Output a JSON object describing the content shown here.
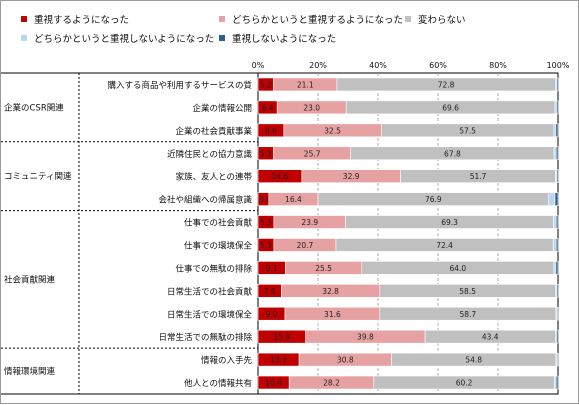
{
  "chart_data": {
    "type": "bar",
    "stacked": true,
    "orientation": "horizontal",
    "xlim": [
      0,
      100
    ],
    "xticks": [
      "0%",
      "20%",
      "40%",
      "60%",
      "80%",
      "100%"
    ],
    "legend": [
      {
        "name": "重視するようになった",
        "color": "#c00000"
      },
      {
        "name": "どちらかというと重視するようになった",
        "color": "#e6a2a2"
      },
      {
        "name": "変わらない",
        "color": "#c0c0c0"
      },
      {
        "name": "どちらかというと重視しないようになった",
        "color": "#b7d7f0"
      },
      {
        "name": "重視しないようになった",
        "color": "#2e5f8a"
      }
    ],
    "groups": [
      {
        "label": "企業のCSR関連",
        "rows": [
          0,
          2
        ]
      },
      {
        "label": "コミュニティ関連",
        "rows": [
          3,
          5
        ]
      },
      {
        "label": "社会貢献関連",
        "rows": [
          6,
          11
        ]
      },
      {
        "label": "情報環境関連",
        "rows": [
          12,
          13
        ]
      }
    ],
    "categories": [
      "購入する商品や利用するサービスの質",
      "企業の情報公開",
      "企業の社会貢献事業",
      "近隣住民との協力意識",
      "家族、友人との連帯",
      "会社や組織への帰属意識",
      "仕事での社会貢献",
      "仕事での環境保全",
      "仕事での無駄の排除",
      "日常生活での社会貢献",
      "日常生活での環境保全",
      "日常生活での無駄の排除",
      "情報の入手先",
      "他人との情報共有"
    ],
    "series": [
      {
        "name": "重視するようになった",
        "values": [
          5.2,
          6.4,
          8.6,
          5.2,
          14.6,
          3.6,
          5.3,
          5.3,
          9.1,
          7.8,
          9.0,
          15.9,
          13.7,
          10.4
        ]
      },
      {
        "name": "どちらかというと重視するようになった",
        "values": [
          21.1,
          23.0,
          32.5,
          25.7,
          32.9,
          16.4,
          23.9,
          20.7,
          25.5,
          32.8,
          31.6,
          39.8,
          30.8,
          28.2
        ]
      },
      {
        "name": "変わらない",
        "values": [
          72.8,
          69.6,
          57.5,
          67.8,
          51.7,
          76.9,
          69.3,
          72.4,
          64.0,
          58.5,
          58.7,
          43.4,
          54.8,
          60.2
        ]
      },
      {
        "name": "どちらかというと重視しないようになった",
        "values": [
          0.5,
          0.5,
          0.7,
          0.7,
          0.4,
          2.1,
          0.9,
          1.0,
          0.7,
          0.5,
          0.4,
          0.4,
          0.4,
          0.6
        ]
      },
      {
        "name": "重視しないようになった",
        "values": [
          0.4,
          0.5,
          0.7,
          0.6,
          0.4,
          1.0,
          0.6,
          0.6,
          0.7,
          0.4,
          0.3,
          0.5,
          0.3,
          0.6
        ]
      }
    ],
    "labels": [
      [
        "5.2",
        "21.1",
        "72.8"
      ],
      [
        "6.4",
        "23.0",
        "69.6"
      ],
      [
        "8.6",
        "32.5",
        "57.5"
      ],
      [
        "5.2",
        "25.7",
        "67.8"
      ],
      [
        "14.6",
        "32.9",
        "51.7"
      ],
      [
        "3.6",
        "16.4",
        "76.9"
      ],
      [
        "5.3",
        "23.9",
        "69.3"
      ],
      [
        "5.3",
        "20.7",
        "72.4"
      ],
      [
        "9.1",
        "25.5",
        "64.0"
      ],
      [
        "7.8",
        "32.8",
        "58.5"
      ],
      [
        "9.0",
        "31.6",
        "58.7"
      ],
      [
        "15.9",
        "39.8",
        "43.4"
      ],
      [
        "13.7",
        "30.8",
        "54.8"
      ],
      [
        "10.4",
        "28.2",
        "60.2"
      ]
    ]
  }
}
